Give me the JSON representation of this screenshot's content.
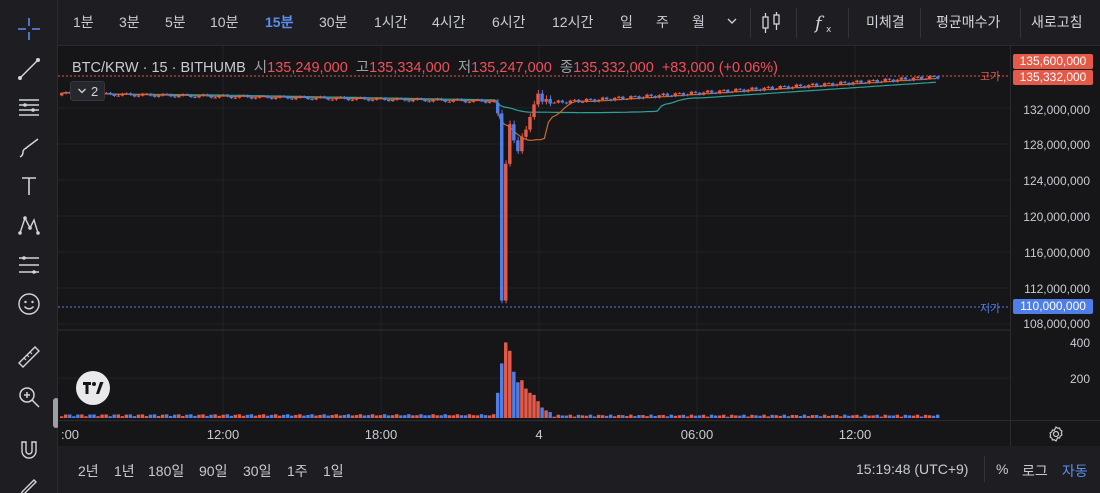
{
  "toolbar": {
    "timeframes": [
      "1분",
      "3분",
      "5분",
      "10분",
      "15분",
      "30분",
      "1시간",
      "4시간",
      "6시간",
      "12시간",
      "일",
      "주",
      "월"
    ],
    "active_timeframe": "15분",
    "buttons": {
      "unfilled": "미체결",
      "avg_price": "평균매수가",
      "refresh": "새로고침"
    }
  },
  "symbol": {
    "title": "BTC/KRW · 15 · BITHUMB",
    "open_label": "시",
    "open": "135,249,000",
    "high_label": "고",
    "high": "135,334,000",
    "low_label": "저",
    "low": "135,247,000",
    "close_label": "종",
    "close": "135,332,000",
    "change": "+83,000 (+0.06%)",
    "indicator_count": "2"
  },
  "price_axis": {
    "ticks": [
      "132,000,000",
      "128,000,000",
      "124,000,000",
      "120,000,000",
      "116,000,000",
      "112,000,000",
      "108,000,000"
    ],
    "high_tag": "135,600,000",
    "last_tag": "135,332,000",
    "low_tag": "110,000,000",
    "high_line_label": "고가",
    "low_line_label": "저가"
  },
  "volume_axis": {
    "ticks": [
      "400",
      "200"
    ]
  },
  "time_axis": {
    "labels": [
      ":00",
      "12:00",
      "18:00",
      "4",
      "06:00",
      "12:00"
    ]
  },
  "bottom": {
    "ranges": [
      "2년",
      "1년",
      "180일",
      "90일",
      "30일",
      "1주",
      "1일"
    ],
    "clock": "15:19:48 (UTC+9)",
    "percent": "%",
    "log": "로그",
    "auto": "자동"
  },
  "colors": {
    "up": "#e35b48",
    "down": "#4f7ee6",
    "accent": "#5b8def",
    "ma": "#c96a28",
    "ma2": "#2aa39a"
  }
}
